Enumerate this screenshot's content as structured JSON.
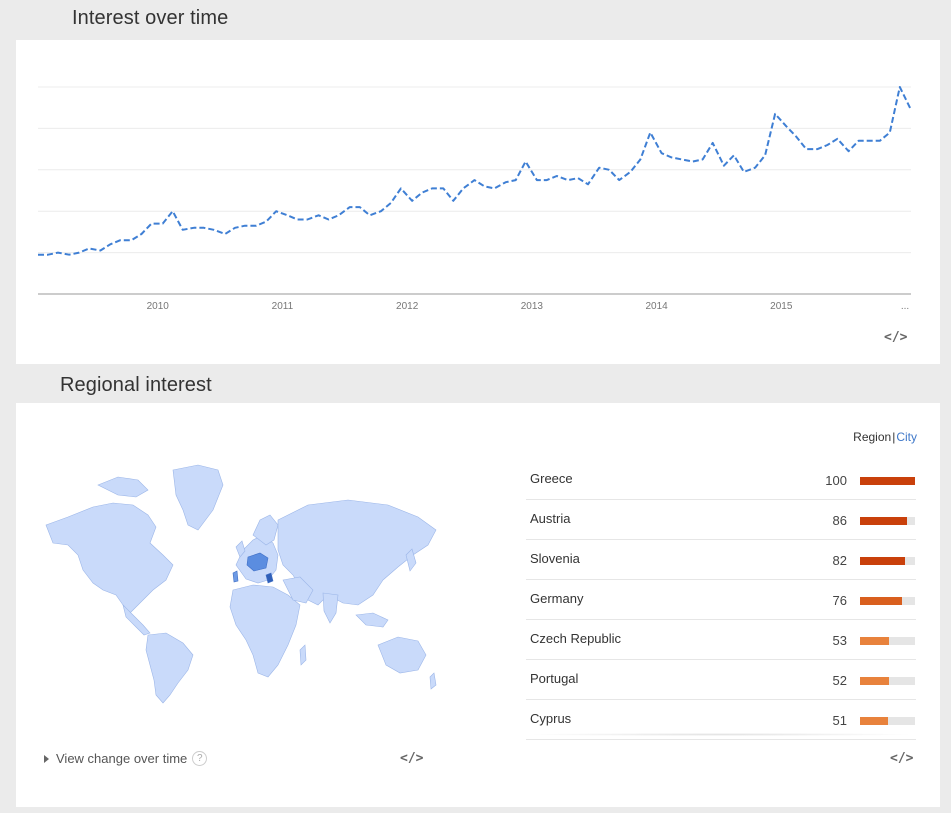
{
  "sections": {
    "time_title": "Interest over time",
    "region_title": "Regional interest"
  },
  "embed_label": "</>",
  "colors": {
    "line": "#3f7fd4",
    "bar_high": "#c9400b",
    "bar_mid": "#d95f1e",
    "bar_low": "#e8823c",
    "map_land": "#c9dafa",
    "map_highlight": "#5b8de0"
  },
  "chart_data": {
    "type": "line",
    "title": "Interest over time",
    "xlabel": "",
    "ylabel": "",
    "x_tick_labels": [
      "2010",
      "2011",
      "2012",
      "2013",
      "2014",
      "2015",
      "..."
    ],
    "x_tick_positions": [
      2010.0,
      2011.0,
      2012.0,
      2013.0,
      2014.0,
      2015.0,
      2016.0
    ],
    "xlim": [
      2009.04,
      2016.04
    ],
    "ylim": [
      0,
      100
    ],
    "grid": true,
    "series": [
      {
        "line_style": "dashed",
        "x": [
          2009.04,
          2009.12,
          2009.2,
          2009.29,
          2009.37,
          2009.45,
          2009.54,
          2009.62,
          2009.7,
          2009.79,
          2009.87,
          2009.95,
          2010.04,
          2010.12,
          2010.2,
          2010.29,
          2010.37,
          2010.45,
          2010.54,
          2010.62,
          2010.7,
          2010.79,
          2010.87,
          2010.95,
          2011.04,
          2011.12,
          2011.2,
          2011.29,
          2011.37,
          2011.45,
          2011.54,
          2011.62,
          2011.7,
          2011.79,
          2011.87,
          2011.95,
          2012.04,
          2012.12,
          2012.2,
          2012.29,
          2012.37,
          2012.45,
          2012.54,
          2012.62,
          2012.7,
          2012.79,
          2012.87,
          2012.95,
          2013.04,
          2013.12,
          2013.2,
          2013.29,
          2013.37,
          2013.45,
          2013.54,
          2013.62,
          2013.7,
          2013.79,
          2013.87,
          2013.95,
          2014.04,
          2014.12,
          2014.2,
          2014.29,
          2014.37,
          2014.45,
          2014.54,
          2014.62,
          2014.7,
          2014.79,
          2014.87,
          2014.95,
          2015.04,
          2015.12,
          2015.2,
          2015.29,
          2015.37,
          2015.45,
          2015.54,
          2015.62,
          2015.7,
          2015.79,
          2015.87,
          2015.95,
          2016.04
        ],
        "values": [
          19,
          19,
          20,
          19,
          20,
          22,
          21,
          24,
          26,
          26,
          29,
          34,
          34,
          40,
          31,
          32,
          32,
          31,
          29,
          32,
          33,
          33,
          35,
          40,
          38,
          36,
          36,
          38,
          36,
          38,
          42,
          42,
          38,
          40,
          44,
          51,
          45,
          49,
          51,
          51,
          45,
          51,
          55,
          52,
          51,
          54,
          55,
          64,
          55,
          55,
          57,
          55,
          56,
          53,
          61,
          60,
          55,
          59,
          65,
          78,
          68,
          66,
          65,
          64,
          65,
          73,
          62,
          67,
          59,
          61,
          67,
          87,
          81,
          76,
          70,
          70,
          72,
          75,
          69,
          74,
          74,
          74,
          78,
          100,
          89
        ]
      }
    ]
  },
  "regional": {
    "toggle": {
      "region": "Region",
      "separator": "|",
      "city": "City"
    },
    "rows": [
      {
        "name": "Greece",
        "value": 100
      },
      {
        "name": "Austria",
        "value": 86
      },
      {
        "name": "Slovenia",
        "value": 82
      },
      {
        "name": "Germany",
        "value": 76
      },
      {
        "name": "Czech Republic",
        "value": 53
      },
      {
        "name": "Portugal",
        "value": 52
      },
      {
        "name": "Cyprus",
        "value": 51
      }
    ],
    "view_change": "View change over time",
    "help_glyph": "?"
  }
}
